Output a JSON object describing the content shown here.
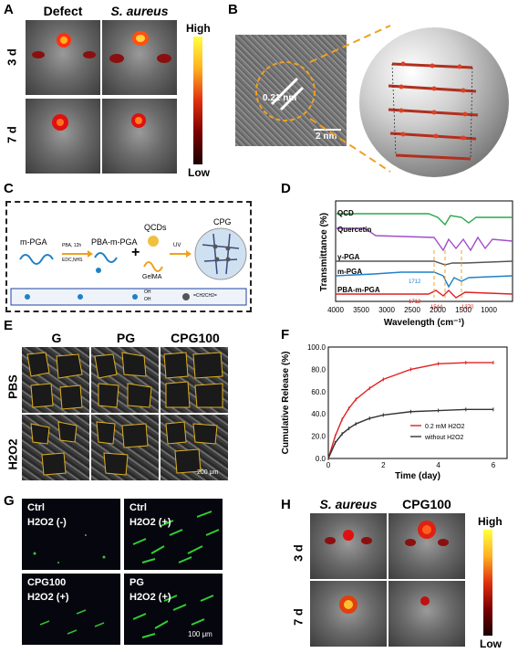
{
  "panels": {
    "A": {
      "label": "A",
      "col_headers": [
        "Defect",
        "S. aureus"
      ],
      "row_labels": [
        "3 d",
        "7 d"
      ],
      "colorbar": {
        "high": "High",
        "low": "Low"
      }
    },
    "B": {
      "label": "B",
      "lattice": "0.21 nm",
      "scale": "2 nm"
    },
    "C": {
      "label": "C",
      "m_pga": "m-PGA",
      "pba_m_pga": "PBA-m-PGA",
      "reaction1": "PBA, 12h",
      "reaction2": "EDC,NHS",
      "qcds": "QCDs",
      "gelma": "GelMA",
      "uv": "UV",
      "cpg": "CPG",
      "plus": "+",
      "legend_oh1": "OH",
      "legend_oh2": "OH",
      "legend_chain": "=CH2CH2="
    },
    "D": {
      "label": "D",
      "ylabel": "Transmittance (%)",
      "xlabel": "Wavelength (cm⁻¹)",
      "series": [
        "QCD",
        "Quercetin",
        "γ-PGA",
        "m-PGA",
        "PBA-m-PGA"
      ],
      "xticks": [
        "4000",
        "3500",
        "3000",
        "2500",
        "2000",
        "1500",
        "1000"
      ],
      "annotations": [
        "1712",
        "1712",
        "1544",
        "1370"
      ]
    },
    "E": {
      "label": "E",
      "col_headers": [
        "G",
        "PG",
        "CPG100"
      ],
      "row_labels": [
        "PBS",
        "H2O2"
      ],
      "scale": "200 μm"
    },
    "F": {
      "label": "F",
      "ylabel": "Cumulative Release (%)",
      "xlabel": "Time (day)",
      "legend": [
        "0.2 mM H2O2",
        "without H2O2"
      ]
    },
    "G": {
      "label": "G",
      "tiles": [
        {
          "line1": "Ctrl",
          "line2": "H2O2 (-)"
        },
        {
          "line1": "Ctrl",
          "line2": "H2O2 (+)"
        },
        {
          "line1": "CPG100",
          "line2": "H2O2 (+)"
        },
        {
          "line1": "PG",
          "line2": "H2O2 (+)"
        }
      ],
      "scale": "100 μm"
    },
    "H": {
      "label": "H",
      "col_headers": [
        "S. aureus",
        "CPG100"
      ],
      "row_labels": [
        "3 d",
        "7 d"
      ],
      "colorbar": {
        "high": "High",
        "low": "Low"
      }
    }
  },
  "chart_data": [
    {
      "type": "line",
      "title": "",
      "xlabel": "Wavelength (cm⁻¹)",
      "ylabel": "Transmittance (%)",
      "xlim": [
        4000,
        700
      ],
      "series": [
        {
          "name": "QCD",
          "color": "#2aa84a"
        },
        {
          "name": "Quercetin",
          "color": "#a050c8"
        },
        {
          "name": "γ-PGA",
          "color": "#555555"
        },
        {
          "name": "m-PGA",
          "color": "#2080c8"
        },
        {
          "name": "PBA-m-PGA",
          "color": "#e02020"
        }
      ]
    },
    {
      "type": "line",
      "title": "",
      "xlabel": "Time (day)",
      "ylabel": "Cumulative Release (%)",
      "xlim": [
        0,
        6.5
      ],
      "ylim": [
        0,
        100
      ],
      "xticks": [
        0,
        2,
        4,
        6
      ],
      "yticks": [
        0.0,
        20.0,
        40.0,
        60.0,
        80.0,
        100.0
      ],
      "series": [
        {
          "name": "0.2 mM H2O2",
          "color": "#e02020",
          "x": [
            0,
            0.25,
            0.5,
            0.75,
            1,
            1.5,
            2,
            3,
            4,
            5,
            6
          ],
          "y": [
            0,
            20,
            35,
            45,
            53,
            63,
            71,
            80,
            85,
            86,
            86
          ]
        },
        {
          "name": "without H2O2",
          "color": "#333333",
          "x": [
            0,
            0.25,
            0.5,
            0.75,
            1,
            1.5,
            2,
            3,
            4,
            5,
            6
          ],
          "y": [
            0,
            14,
            22,
            27,
            31,
            36,
            39,
            42,
            43,
            44,
            44
          ]
        }
      ]
    }
  ]
}
